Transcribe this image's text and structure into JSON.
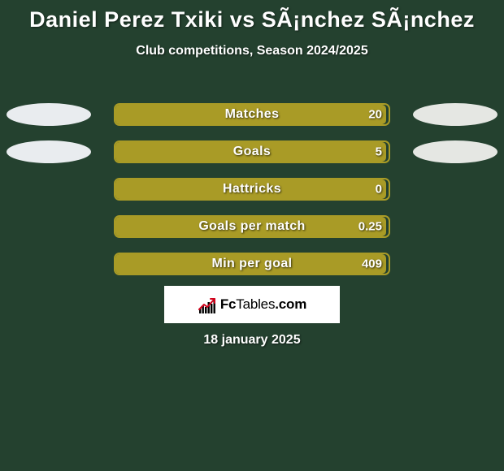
{
  "background_color": "#24412f",
  "text_color": "#ffffff",
  "title": "Daniel Perez Txiki vs SÃ¡nchez SÃ¡nchez",
  "title_fontsize": 27,
  "subtitle": "Club competitions, Season 2024/2025",
  "subtitle_fontsize": 16,
  "side_ellipse": {
    "left_color": "#e9ecef",
    "right_color": "#e5e7e3",
    "width": 104,
    "height": 28
  },
  "bar_style": {
    "track_width": 340,
    "track_height": 28,
    "border_radius": 7,
    "outline_color": "#a99b26",
    "fill_color": "#a99b26",
    "label_fontsize": 16,
    "value_fontsize": 15
  },
  "rows": [
    {
      "label": "Matches",
      "value": "20",
      "fill_pct": 99,
      "left_ellipse": true,
      "right_ellipse": true
    },
    {
      "label": "Goals",
      "value": "5",
      "fill_pct": 99,
      "left_ellipse": true,
      "right_ellipse": true
    },
    {
      "label": "Hattricks",
      "value": "0",
      "fill_pct": 99,
      "left_ellipse": false,
      "right_ellipse": false
    },
    {
      "label": "Goals per match",
      "value": "0.25",
      "fill_pct": 99,
      "left_ellipse": false,
      "right_ellipse": false
    },
    {
      "label": "Min per goal",
      "value": "409",
      "fill_pct": 99,
      "left_ellipse": false,
      "right_ellipse": false
    }
  ],
  "brand": {
    "box_bg": "#ffffff",
    "text_1": "Fc",
    "text_2": "Tables",
    "text_3": ".com",
    "text_color": "#000000",
    "icon_bar_color": "#000000",
    "icon_arrow_color": "#d0021b"
  },
  "date": "18 january 2025",
  "date_fontsize": 16
}
